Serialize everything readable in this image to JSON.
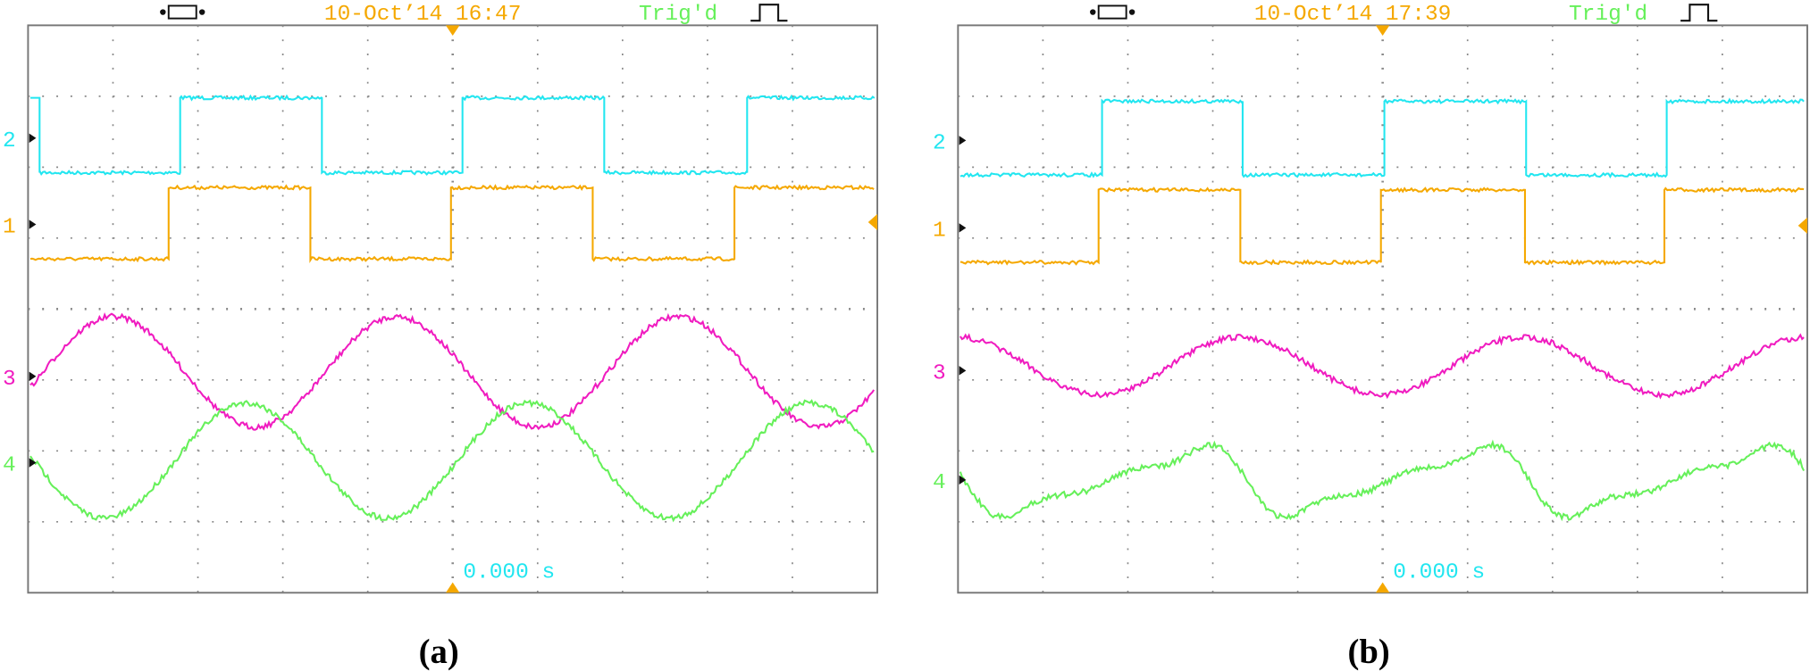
{
  "panels": [
    {
      "date": "10-Oct’14 16:47",
      "trigger": "Trig'd",
      "channels": [
        "2",
        "1",
        "3",
        "4"
      ],
      "time": "0.000 s",
      "caption": "(a)"
    },
    {
      "date": "10-Oct’14 17:39",
      "trigger": "Trig'd",
      "channels": [
        "2",
        "1",
        "3",
        "4"
      ],
      "time": "0.000 s",
      "caption": "(b)"
    }
  ]
}
